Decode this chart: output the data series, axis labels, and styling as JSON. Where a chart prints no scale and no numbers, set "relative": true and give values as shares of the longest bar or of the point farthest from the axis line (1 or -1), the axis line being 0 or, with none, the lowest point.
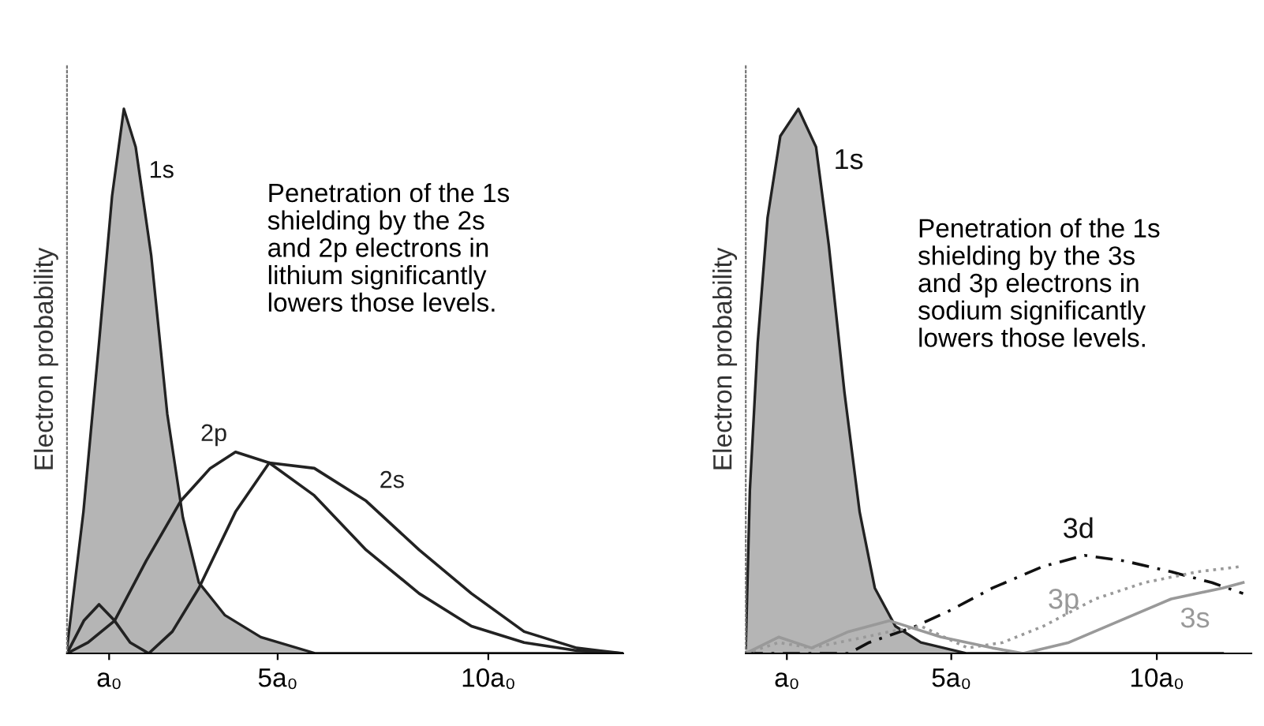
{
  "chart_data": [
    {
      "type": "line",
      "relative": true,
      "ylabel": "Electron probability",
      "xlim": [
        0,
        13.2
      ],
      "xticks": [
        {
          "value": 1,
          "label": "a₀"
        },
        {
          "value": 5,
          "label": "5a₀"
        },
        {
          "value": 10,
          "label": "10a₀"
        }
      ],
      "tick_labels": "x",
      "annotations": [
        "Penetration of the 1s\nshielding by the 2s\nand 2p electrons in\nlithium significantly\nlowers those levels."
      ],
      "series": [
        {
          "name": "1s",
          "type": "area",
          "color": "#b5b5b5",
          "x": [
            0,
            0.39,
            0.76,
            1.07,
            1.35,
            1.63,
            2.0,
            2.38,
            2.75,
            3.13,
            3.75,
            4.6,
            5.9,
            12.7
          ],
          "values": [
            0.01,
            0.26,
            0.57,
            0.84,
            1.0,
            0.93,
            0.73,
            0.44,
            0.25,
            0.13,
            0.07,
            0.03,
            0,
            0
          ]
        },
        {
          "name": "2s",
          "color": "#222222",
          "x": [
            0,
            0.4,
            0.76,
            1.13,
            1.5,
            1.94,
            2.5,
            3.13,
            4.0,
            4.8,
            5.87,
            7.1,
            8.36,
            9.6,
            10.85,
            12.1,
            13.2
          ],
          "values": [
            0,
            0.06,
            0.09,
            0.06,
            0.02,
            0,
            0.04,
            0.12,
            0.26,
            0.35,
            0.34,
            0.28,
            0.19,
            0.11,
            0.04,
            0.01,
            0
          ]
        },
        {
          "name": "2p",
          "color": "#222222",
          "x": [
            0,
            0.5,
            1.13,
            1.88,
            2.7,
            3.4,
            4.0,
            4.8,
            5.87,
            7.1,
            8.36,
            9.6,
            10.85,
            12.1,
            13.2
          ],
          "values": [
            0,
            0.02,
            0.06,
            0.17,
            0.28,
            0.34,
            0.37,
            0.35,
            0.29,
            0.19,
            0.11,
            0.05,
            0.02,
            0.005,
            0
          ]
        }
      ]
    },
    {
      "type": "line",
      "relative": true,
      "ylabel": "Electron probability",
      "xlim": [
        0,
        12.3
      ],
      "xticks": [
        {
          "value": 1,
          "label": "a₀"
        },
        {
          "value": 5,
          "label": "5a₀"
        },
        {
          "value": 10,
          "label": "10a₀"
        }
      ],
      "tick_labels": "x",
      "annotations": [
        "Penetration of the 1s\nshielding by the 3s\nand 3p electrons in\nsodium significantly\nlowers those levels."
      ],
      "series": [
        {
          "name": "1s",
          "type": "area",
          "color": "#b5b5b5",
          "x": [
            0,
            0.1,
            0.29,
            0.53,
            0.84,
            1.28,
            1.71,
            2.02,
            2.4,
            2.77,
            3.14,
            3.64,
            4.26,
            5.38,
            11.6
          ],
          "values": [
            0.01,
            0.3,
            0.57,
            0.8,
            0.95,
            1.0,
            0.93,
            0.75,
            0.48,
            0.26,
            0.12,
            0.05,
            0.02,
            0,
            0
          ]
        },
        {
          "name": "3d",
          "color": "#111111",
          "line_style": "dashed",
          "x": [
            0,
            2.5,
            3.0,
            4.14,
            5.0,
            6.0,
            7.24,
            8.24,
            9.2,
            10.35,
            11.34,
            12.1
          ],
          "values": [
            0,
            0,
            0.02,
            0.05,
            0.08,
            0.12,
            0.16,
            0.18,
            0.17,
            0.15,
            0.13,
            0.11
          ]
        },
        {
          "name": "3p",
          "color": "#999999",
          "line_style": "dotted",
          "x": [
            0,
            0.8,
            1.6,
            2.9,
            3.5,
            4.26,
            5.4,
            6.25,
            7.24,
            8.5,
            9.7,
            11.0,
            12.1
          ],
          "values": [
            0,
            0.02,
            0.01,
            0.03,
            0.04,
            0.05,
            0.01,
            0.02,
            0.05,
            0.1,
            0.13,
            0.15,
            0.16
          ]
        },
        {
          "name": "3s",
          "color": "#999999",
          "x": [
            0,
            0.8,
            1.6,
            2.5,
            3.5,
            4.75,
            6.0,
            6.75,
            7.86,
            9.1,
            10.35,
            11.6,
            12.1
          ],
          "values": [
            0,
            0.03,
            0.01,
            0.04,
            0.06,
            0.03,
            0.01,
            0,
            0.02,
            0.06,
            0.1,
            0.12,
            0.13
          ]
        }
      ]
    }
  ]
}
